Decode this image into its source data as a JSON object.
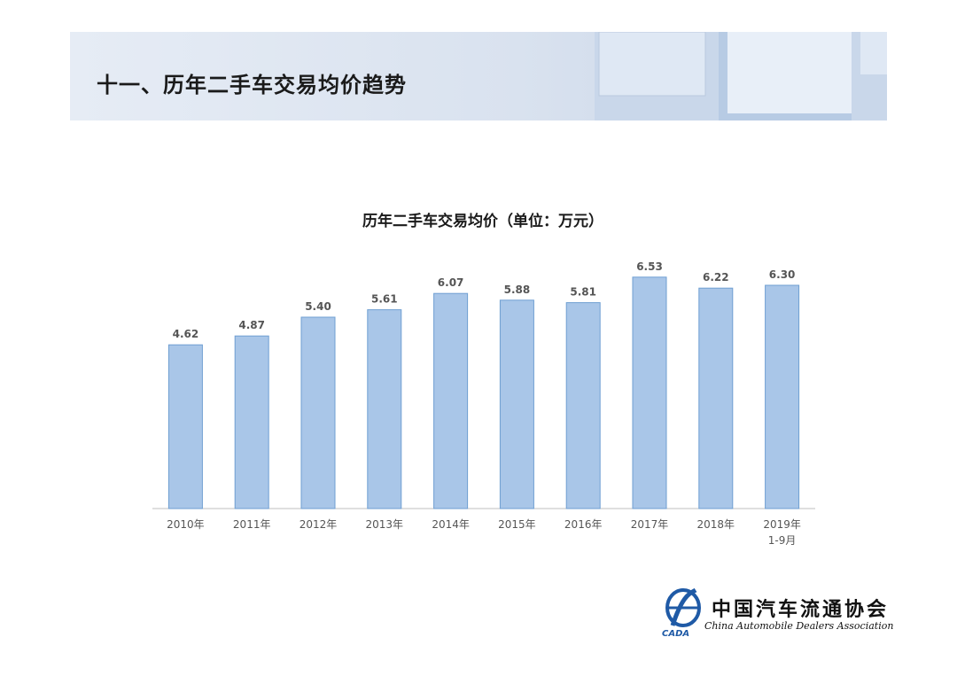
{
  "slide": {
    "title": "十一、历年二手车交易均价趋势"
  },
  "chart_data": {
    "type": "bar",
    "title": "历年二手车交易均价（单位：万元）",
    "categories": [
      "2010年",
      "2011年",
      "2012年",
      "2013年",
      "2014年",
      "2015年",
      "2016年",
      "2017年",
      "2018年",
      "2019年\n1-9月"
    ],
    "values": [
      4.62,
      4.87,
      5.4,
      5.61,
      6.07,
      5.88,
      5.81,
      6.53,
      6.22,
      6.3
    ],
    "value_labels": [
      "4.62",
      "4.87",
      "5.40",
      "5.61",
      "6.07",
      "5.88",
      "5.81",
      "6.53",
      "6.22",
      "6.30"
    ],
    "xlabel": "",
    "ylabel": "",
    "ylim": [
      0,
      7
    ],
    "grid": false,
    "legend": "none",
    "bar_color": "#a9c6e8",
    "bar_edge_color": "#6f9fd2"
  },
  "logo": {
    "mark_text": "CADA",
    "name_cn": "中国汽车流通协会",
    "name_en": "China Automobile Dealers Association"
  },
  "colors": {
    "accent": "#a9c6e8",
    "header_band": "#d9e2ef"
  }
}
